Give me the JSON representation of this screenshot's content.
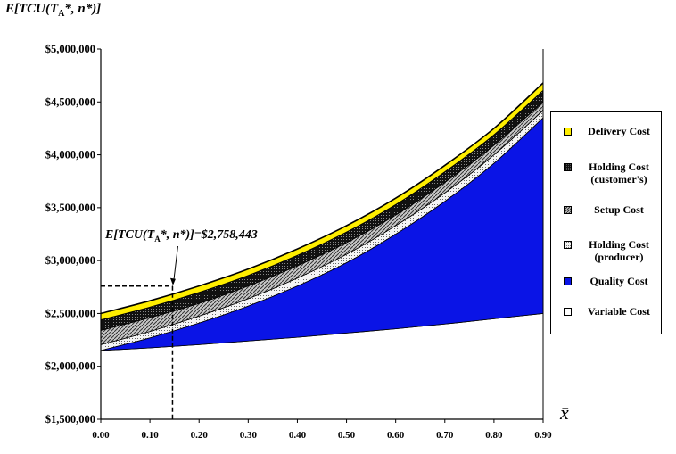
{
  "chart_data": {
    "type": "area",
    "title": "",
    "ylabel": {
      "prefix": "E[TCU(T",
      "sub": "A",
      "suffix": "*, n*)]"
    },
    "xlabel": "x̄",
    "xlim": [
      0,
      0.9
    ],
    "ylim": [
      1500000,
      5000000
    ],
    "x_ticks": [
      "0.00",
      "0.10",
      "0.20",
      "0.30",
      "0.40",
      "0.50",
      "0.60",
      "0.70",
      "0.80",
      "0.90"
    ],
    "y_ticks": [
      "$1,500,000",
      "$2,000,000",
      "$2,500,000",
      "$3,000,000",
      "$3,500,000",
      "$4,000,000",
      "$4,500,000",
      "$5,000,000"
    ],
    "x": [
      0.0,
      0.1,
      0.2,
      0.3,
      0.4,
      0.5,
      0.6,
      0.7,
      0.8,
      0.9
    ],
    "series": [
      {
        "name": "Variable Cost",
        "color": "#ffffff",
        "pattern": "none",
        "values": [
          2150000,
          2175000,
          2205000,
          2240000,
          2275000,
          2315000,
          2355000,
          2400000,
          2450000,
          2500000
        ]
      },
      {
        "name": "Quality Cost",
        "color": "#0a14e6",
        "pattern": "none",
        "values": [
          2150000,
          2270000,
          2410000,
          2570000,
          2760000,
          2980000,
          3250000,
          3560000,
          3920000,
          4350000
        ]
      },
      {
        "name": "Holding Cost (producer)",
        "color": "#e6e6e6",
        "pattern": "dots",
        "values": [
          2205000,
          2330000,
          2475000,
          2640000,
          2835000,
          3060000,
          3330000,
          3640000,
          4000000,
          4420000
        ]
      },
      {
        "name": "Setup Cost",
        "color": "#9a9a9a",
        "pattern": "hatch",
        "values": [
          2340000,
          2460000,
          2595000,
          2760000,
          2950000,
          3170000,
          3430000,
          3740000,
          4090000,
          4500000
        ]
      },
      {
        "name": "Holding Cost (customer's)",
        "color": "#111111",
        "pattern": "dense",
        "values": [
          2440000,
          2560000,
          2700000,
          2860000,
          3050000,
          3270000,
          3530000,
          3840000,
          4190000,
          4610000
        ]
      },
      {
        "name": "Delivery Cost",
        "color": "#ffee00",
        "pattern": "none",
        "values": [
          2500000,
          2620000,
          2760000,
          2920000,
          3110000,
          3330000,
          3590000,
          3900000,
          4250000,
          4680000
        ]
      }
    ],
    "legend": [
      {
        "name": "Delivery Cost",
        "lines": [
          "Delivery Cost"
        ],
        "color": "#ffee00",
        "pattern": "none"
      },
      {
        "name": "Holding Cost (customer's)",
        "lines": [
          "Holding Cost",
          "(customer's)"
        ],
        "color": "#111111",
        "pattern": "dense"
      },
      {
        "name": "Setup Cost",
        "lines": [
          "Setup Cost"
        ],
        "color": "#9a9a9a",
        "pattern": "hatch"
      },
      {
        "name": "Holding Cost (producer)",
        "lines": [
          "Holding Cost",
          "(producer)"
        ],
        "color": "#e6e6e6",
        "pattern": "dots"
      },
      {
        "name": "Quality Cost",
        "lines": [
          "Quality Cost"
        ],
        "color": "#0a14e6",
        "pattern": "none"
      },
      {
        "name": "Variable Cost",
        "lines": [
          "Variable Cost"
        ],
        "color": "#ffffff",
        "pattern": "none"
      }
    ],
    "legend_position": "right",
    "grid": false,
    "annotation": {
      "label_prefix": "E[TCU(T",
      "label_sub": "A",
      "label_suffix": "*, n*)]=$2,758,443",
      "x": 0.146,
      "y": 2758443
    }
  }
}
